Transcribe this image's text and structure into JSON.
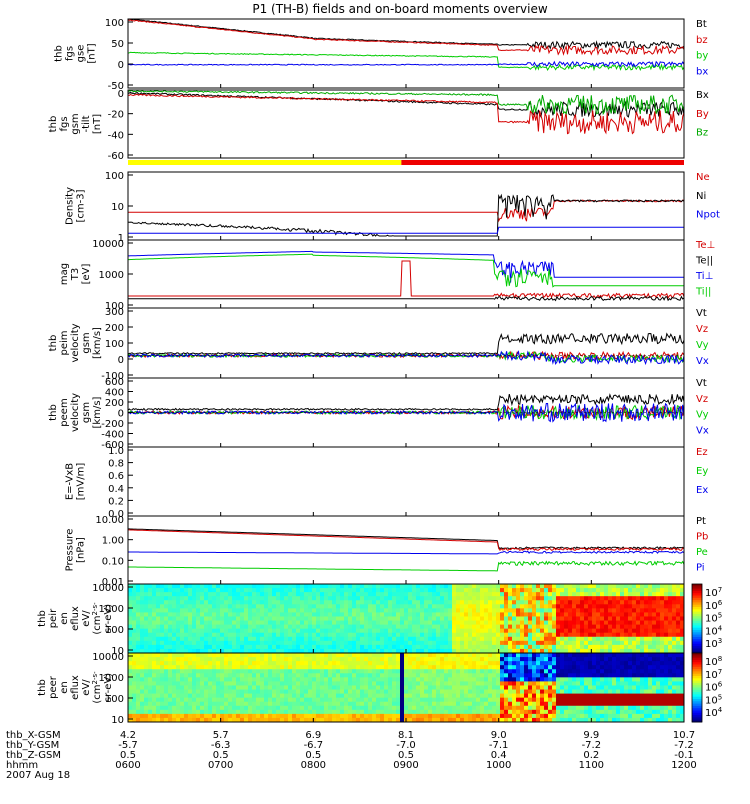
{
  "title": "P1 (TH-B) fields and on-board moments overview",
  "chart_data": [
    {
      "type": "line",
      "name": "fgs-gse",
      "ylabel": [
        "thb",
        "fgs",
        "gse",
        "[nT]"
      ],
      "yticks": [
        "100",
        "50",
        "0",
        "-50"
      ],
      "ylim": [
        -60,
        100
      ],
      "series": [
        {
          "name": "Bt",
          "color": "#000000"
        },
        {
          "name": "bz",
          "color": "#d40000"
        },
        {
          "name": "by",
          "color": "#00cc00"
        },
        {
          "name": "bx",
          "color": "#0000ee"
        }
      ]
    },
    {
      "type": "line",
      "name": "fgs-gsm",
      "ylabel": [
        "thb",
        "fgs",
        "gsm",
        "-tilt",
        "[nT]"
      ],
      "yticks": [
        "0",
        "-20",
        "-40",
        "-60"
      ],
      "ylim": [
        -65,
        5
      ],
      "series": [
        {
          "name": "Bx",
          "color": "#000000"
        },
        {
          "name": "By",
          "color": "#d40000"
        },
        {
          "name": "Bz",
          "color": "#00aa00"
        }
      ]
    },
    {
      "type": "line",
      "name": "density",
      "ylabel": [
        "Density",
        "[cm-3]"
      ],
      "yticks": [
        "100",
        "10",
        "1"
      ],
      "ylim": [
        0.3,
        300
      ],
      "series": [
        {
          "name": "Ne",
          "color": "#d40000"
        },
        {
          "name": "Ni",
          "color": "#000000"
        },
        {
          "name": "Npot",
          "color": "#0000ee"
        }
      ]
    },
    {
      "type": "line",
      "name": "temperature",
      "ylabel": [
        "mag",
        "T3",
        "[eV]"
      ],
      "yticks": [
        "10000",
        "1000",
        "100"
      ],
      "ylim": [
        30,
        15000
      ],
      "series": [
        {
          "name": "Te⊥",
          "color": "#d40000"
        },
        {
          "name": "Te||",
          "color": "#000000"
        },
        {
          "name": "Ti⊥",
          "color": "#0000ee"
        },
        {
          "name": "Ti||",
          "color": "#00cc00"
        }
      ]
    },
    {
      "type": "line",
      "name": "peim-velocity",
      "ylabel": [
        "thb",
        "peim",
        "velocity",
        "gsm",
        "[km/s]"
      ],
      "yticks": [
        "300",
        "200",
        "100",
        "0",
        "-100"
      ],
      "ylim": [
        -150,
        320
      ],
      "series": [
        {
          "name": "Vt",
          "color": "#000000"
        },
        {
          "name": "Vz",
          "color": "#d40000"
        },
        {
          "name": "Vy",
          "color": "#00cc00"
        },
        {
          "name": "Vx",
          "color": "#0000ee"
        }
      ]
    },
    {
      "type": "line",
      "name": "peem-velocity",
      "ylabel": [
        "thb",
        "peem",
        "velocity",
        "gsm",
        "[km/s]"
      ],
      "yticks": [
        "600",
        "400",
        "200",
        "0",
        "-200",
        "-400",
        "-600"
      ],
      "ylim": [
        -600,
        600
      ],
      "series": [
        {
          "name": "Vt",
          "color": "#000000"
        },
        {
          "name": "Vz",
          "color": "#d40000"
        },
        {
          "name": "Vy",
          "color": "#00cc00"
        },
        {
          "name": "Vx",
          "color": "#0000ee"
        }
      ]
    },
    {
      "type": "line",
      "name": "efield",
      "ylabel": [
        "E=-VxB",
        "[mV/m]"
      ],
      "yticks": [
        "1.0",
        "0.8",
        "0.6",
        "0.4",
        "0.2",
        "0.0"
      ],
      "ylim": [
        0,
        1
      ],
      "series": [
        {
          "name": "Ez",
          "color": "#d40000"
        },
        {
          "name": "Ey",
          "color": "#00cc00"
        },
        {
          "name": "Ex",
          "color": "#0000ee"
        }
      ]
    },
    {
      "type": "line",
      "name": "pressure",
      "ylabel": [
        "Pressure",
        "[nPa]"
      ],
      "yticks": [
        "10.00",
        "1.00",
        "0.10",
        "0.01"
      ],
      "ylim": [
        0.008,
        12
      ],
      "series": [
        {
          "name": "Pt",
          "color": "#000000"
        },
        {
          "name": "Pb",
          "color": "#d40000"
        },
        {
          "name": "Pe",
          "color": "#00cc00"
        },
        {
          "name": "Pi",
          "color": "#0000ee"
        }
      ]
    },
    {
      "type": "heatmap",
      "name": "peir-spectrogram",
      "ylabel": [
        "thb",
        "peir",
        "en",
        "eflux",
        "eV/",
        "(cm^2-s-",
        "sr-eV)"
      ],
      "yticks": [
        "10000",
        "1000",
        "100",
        "10"
      ],
      "ylim": [
        5,
        25000
      ],
      "colorbar_ticks": [
        "10^7",
        "10^6",
        "10^5",
        "10^4",
        "10^3"
      ]
    },
    {
      "type": "heatmap",
      "name": "peer-spectrogram",
      "ylabel": [
        "thb",
        "peer",
        "en",
        "eflux",
        "eV/",
        "(cm^2-s-",
        "sr-eV)"
      ],
      "yticks": [
        "10000",
        "1000",
        "100",
        "10"
      ],
      "ylim": [
        5,
        25000
      ],
      "colorbar_ticks": [
        "10^8",
        "10^7",
        "10^6",
        "10^5",
        "10^4"
      ]
    }
  ],
  "xaxis": {
    "row_labels": [
      "thb_X-GSM",
      "thb_Y-GSM",
      "thb_Z-GSM",
      "hhmm",
      "2007 Aug 18"
    ],
    "columns": [
      {
        "x": "4.2",
        "y": "-5.7",
        "z": "0.5",
        "hhmm": "0600",
        "hour": 6
      },
      {
        "x": "5.7",
        "y": "-6.3",
        "z": "0.5",
        "hhmm": "0700",
        "hour": 7
      },
      {
        "x": "6.9",
        "y": "-6.7",
        "z": "0.5",
        "hhmm": "0800",
        "hour": 8
      },
      {
        "x": "8.1",
        "y": "-7.0",
        "z": "0.5",
        "hhmm": "0900",
        "hour": 9
      },
      {
        "x": "9.0",
        "y": "-7.1",
        "z": "0.4",
        "hhmm": "1000",
        "hour": 10
      },
      {
        "x": "9.9",
        "y": "-7.2",
        "z": "0.2",
        "hhmm": "1100",
        "hour": 11
      },
      {
        "x": "10.7",
        "y": "-7.2",
        "z": "-0.1",
        "hhmm": "1200",
        "hour": 12
      }
    ]
  },
  "mode_bar": {
    "label": "mode bar",
    "yellow_until_hour": 8.95,
    "red_from_hour": 8.95
  },
  "colors": {
    "yellow": "#ffff00",
    "red": "#ee0000"
  }
}
